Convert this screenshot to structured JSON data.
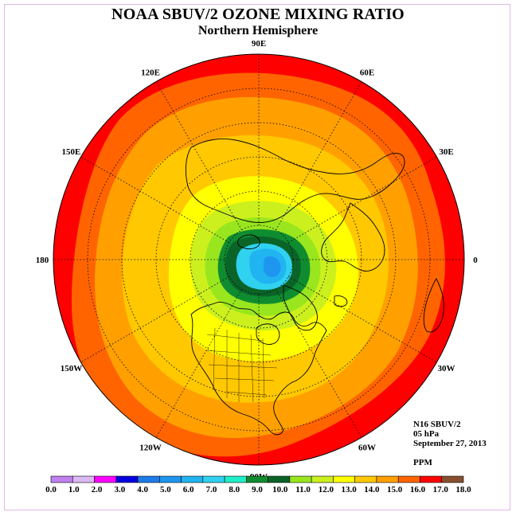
{
  "title": "NOAA SBUV/2 OZONE MIXING RATIO",
  "subtitle": "Northern Hemisphere",
  "info": {
    "satellite": "N16 SBUV/2",
    "level": "05 hPa",
    "date": "September 27, 2013",
    "units": "PPM"
  },
  "longitude_labels": [
    {
      "label": "90E",
      "lon": 90
    },
    {
      "label": "60E",
      "lon": 60
    },
    {
      "label": "30E",
      "lon": 30
    },
    {
      "label": "0",
      "lon": 0
    },
    {
      "label": "30W",
      "lon": -30
    },
    {
      "label": "60W",
      "lon": -60
    },
    {
      "label": "90W",
      "lon": -90
    },
    {
      "label": "120W",
      "lon": -120
    },
    {
      "label": "150W",
      "lon": -150
    },
    {
      "label": "180",
      "lon": 180
    },
    {
      "label": "150E",
      "lon": 150
    },
    {
      "label": "120E",
      "lon": 120
    }
  ],
  "colorbar": {
    "ticks": [
      "0.0",
      "1.0",
      "2.0",
      "3.0",
      "4.0",
      "5.0",
      "6.0",
      "7.0",
      "8.0",
      "9.0",
      "10.0",
      "11.0",
      "12.0",
      "13.0",
      "14.0",
      "15.0",
      "16.0",
      "17.0",
      "18.0"
    ],
    "colors": [
      "#c080f0",
      "#dcb8f4",
      "#ff00ff",
      "#0000e0",
      "#1c7ce8",
      "#1e96f0",
      "#20b4f0",
      "#30d2f0",
      "#20f0c8",
      "#108c30",
      "#0a6428",
      "#9ae61e",
      "#ccf01e",
      "#ffff00",
      "#ffc800",
      "#ffa000",
      "#ff6400",
      "#ff0000",
      "#885030"
    ]
  },
  "map_colors": {
    "red": "#ff0000",
    "orange_red": "#ff6400",
    "orange": "#ffa000",
    "light_orange": "#ffc800",
    "yellow": "#ffff00",
    "yellow_green": "#ccf01e",
    "light_green": "#9ae61e",
    "green": "#108c30",
    "dark_green": "#0a6428",
    "cyan": "#30d2f0",
    "light_blue": "#20b4f0",
    "blue": "#1e96f0"
  }
}
